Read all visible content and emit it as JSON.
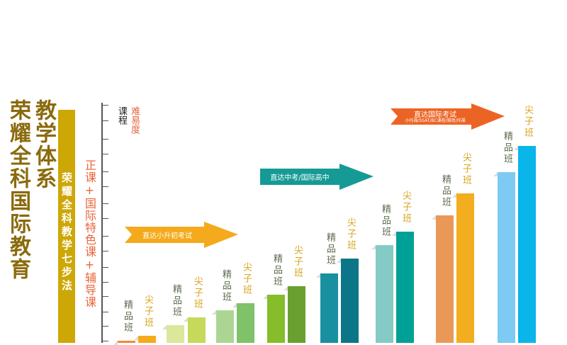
{
  "title_main": "荣耀全科国际教育",
  "title_sub": "教学体系",
  "band_label": "荣耀全科教学七步法",
  "course_structure": "正课+国际特色课+辅导课",
  "axis_header": {
    "course": "课程",
    "difficulty": "难易度"
  },
  "class_labels": {
    "elite": "精品班",
    "top": "尖子班"
  },
  "label_colors": {
    "elite": "#5e6b4e",
    "top": "#d9a620"
  },
  "arrows": [
    {
      "text": "直达小升初考试",
      "color": "#f4aa1c"
    },
    {
      "text": "直达中考/国际高中",
      "color": "#169a95"
    },
    {
      "text": "直达国际考试",
      "subtext": "小托福/SSAT/BC课程/雅思/托福",
      "color": "#ec6425"
    }
  ],
  "bar_colors": [
    [
      "#ee8a3a",
      "#f4ac1c"
    ],
    [
      "#dbe79a",
      "#c6d95a"
    ],
    [
      "#acd594",
      "#80c26a"
    ],
    [
      "#86bd2a",
      "#6aa030"
    ],
    [
      "#1890a0",
      "#0d7588"
    ],
    [
      "#84cbc6",
      "#00a096"
    ],
    [
      "#ea9858",
      "#f2ae1e"
    ],
    [
      "#7dcaf2",
      "#0ab5ea"
    ]
  ]
}
